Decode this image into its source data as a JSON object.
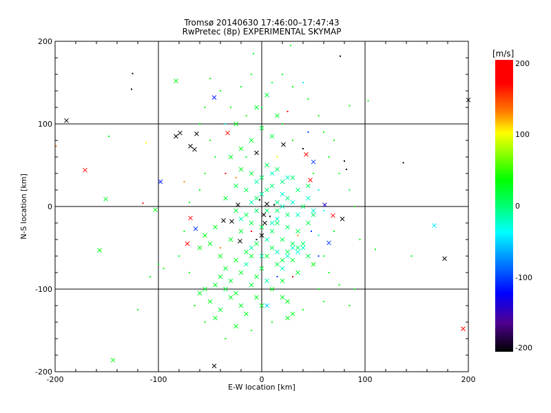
{
  "chart_data": {
    "type": "scatter",
    "title": "Tromsø 20140630 17:46:00–17:47:43",
    "subtitle": "RwPretec (8p) EXPERIMENTAL SKYMAP",
    "xlabel": "E-W location [km]",
    "ylabel": "N-S location [km]",
    "xlim": [
      -200,
      200
    ],
    "ylim": [
      -200,
      200
    ],
    "xticks": [
      "-200",
      "-100",
      "0",
      "100",
      "200"
    ],
    "yticks": [
      "-200",
      "-100",
      "0",
      "100",
      "200"
    ],
    "grid": true,
    "colorbar": {
      "unit": "[m/s]",
      "range": [
        -200,
        200
      ],
      "ticks": [
        "200",
        "100",
        "0",
        "-100",
        "-200"
      ],
      "stops": [
        [
          200,
          "#ff0000"
        ],
        [
          180,
          "#ff0000"
        ],
        [
          150,
          "#ff8000"
        ],
        [
          100,
          "#ffff00"
        ],
        [
          35,
          "#00ff00"
        ],
        [
          0,
          "#00ff70"
        ],
        [
          -35,
          "#00ffff"
        ],
        [
          -70,
          "#0090ff"
        ],
        [
          -120,
          "#0000ff"
        ],
        [
          -160,
          "#500090"
        ],
        [
          -200,
          "#000000"
        ]
      ]
    },
    "points": [
      [
        -189,
        104,
        -200,
        1
      ],
      [
        -199,
        73,
        150,
        0
      ],
      [
        -171,
        44,
        190,
        1
      ],
      [
        -151,
        9,
        25,
        1
      ],
      [
        -157,
        -53,
        30,
        1
      ],
      [
        -144,
        -186,
        30,
        1
      ],
      [
        -98,
        30,
        -110,
        1
      ],
      [
        -103,
        -4,
        30,
        1
      ],
      [
        -112,
        77,
        100,
        0
      ],
      [
        -83,
        85,
        -200,
        1
      ],
      [
        -79,
        89,
        -200,
        1
      ],
      [
        -63,
        88,
        -200,
        1
      ],
      [
        -69,
        73,
        -200,
        1
      ],
      [
        -65,
        69,
        -200,
        1
      ],
      [
        -83,
        152,
        30,
        1
      ],
      [
        -46,
        132,
        -110,
        1
      ],
      [
        -33,
        89,
        190,
        1
      ],
      [
        -5,
        65,
        -200,
        1
      ],
      [
        21,
        75,
        -200,
        1
      ],
      [
        43,
        63,
        190,
        1
      ],
      [
        50,
        54,
        -100,
        1
      ],
      [
        47,
        32,
        190,
        1
      ],
      [
        61,
        2,
        -140,
        1
      ],
      [
        69,
        -11,
        190,
        1
      ],
      [
        78,
        -15,
        -200,
        1
      ],
      [
        65,
        -44,
        -100,
        1
      ],
      [
        -69,
        -14,
        190,
        1
      ],
      [
        -64,
        -27,
        -100,
        1
      ],
      [
        -72,
        -45,
        190,
        1
      ],
      [
        -37,
        -17,
        -200,
        1
      ],
      [
        -29,
        -18,
        -200,
        1
      ],
      [
        -23,
        2,
        -200,
        1
      ],
      [
        -21,
        -42,
        -200,
        1
      ],
      [
        167,
        -23,
        -40,
        1
      ],
      [
        177,
        -63,
        -200,
        1
      ],
      [
        195,
        -148,
        190,
        1
      ],
      [
        -46,
        -193,
        -200,
        1
      ],
      [
        200,
        129,
        -200,
        1
      ],
      [
        2,
        -10,
        -200,
        1
      ],
      [
        5,
        3,
        -200,
        1
      ],
      [
        3,
        -20,
        -200,
        1
      ],
      [
        0,
        -35,
        -200,
        1
      ],
      [
        -40,
        -85,
        25,
        1
      ],
      [
        -45,
        -95,
        25,
        1
      ],
      [
        -35,
        -100,
        20,
        1
      ],
      [
        -30,
        -110,
        25,
        1
      ],
      [
        -25,
        -105,
        20,
        1
      ],
      [
        -20,
        -120,
        25,
        1
      ],
      [
        -15,
        -130,
        25,
        1
      ],
      [
        -30,
        -90,
        20,
        1
      ],
      [
        -20,
        -80,
        25,
        1
      ],
      [
        -10,
        -95,
        20,
        1
      ],
      [
        -5,
        -110,
        25,
        1
      ],
      [
        0,
        -120,
        20,
        1
      ],
      [
        10,
        -100,
        25,
        1
      ],
      [
        20,
        -110,
        20,
        1
      ],
      [
        25,
        -115,
        25,
        1
      ],
      [
        -50,
        -115,
        25,
        1
      ],
      [
        -40,
        -125,
        20,
        1
      ],
      [
        -55,
        -100,
        25,
        1
      ],
      [
        -35,
        -75,
        20,
        1
      ],
      [
        -25,
        -65,
        25,
        1
      ],
      [
        -15,
        -55,
        20,
        1
      ],
      [
        -5,
        -45,
        15,
        1
      ],
      [
        5,
        -60,
        20,
        1
      ],
      [
        15,
        -70,
        15,
        1
      ],
      [
        25,
        -55,
        10,
        1
      ],
      [
        35,
        -50,
        10,
        1
      ],
      [
        40,
        -45,
        5,
        1
      ],
      [
        45,
        -60,
        10,
        1
      ],
      [
        30,
        -65,
        15,
        1
      ],
      [
        20,
        -40,
        10,
        1
      ],
      [
        10,
        -30,
        5,
        1
      ],
      [
        0,
        -25,
        10,
        1
      ],
      [
        -10,
        -20,
        15,
        1
      ],
      [
        -20,
        -30,
        20,
        1
      ],
      [
        -30,
        -40,
        25,
        1
      ],
      [
        -45,
        -25,
        25,
        1
      ],
      [
        -55,
        -35,
        30,
        1
      ],
      [
        -50,
        -45,
        25,
        1
      ],
      [
        15,
        -20,
        5,
        1
      ],
      [
        25,
        -25,
        5,
        1
      ],
      [
        35,
        -30,
        10,
        1
      ],
      [
        45,
        -20,
        10,
        1
      ],
      [
        5,
        -5,
        0,
        1
      ],
      [
        15,
        5,
        -5,
        1
      ],
      [
        25,
        10,
        -5,
        1
      ],
      [
        35,
        20,
        0,
        1
      ],
      [
        45,
        25,
        5,
        1
      ],
      [
        -5,
        10,
        5,
        1
      ],
      [
        -15,
        20,
        10,
        1
      ],
      [
        -25,
        25,
        15,
        1
      ],
      [
        -35,
        10,
        20,
        1
      ],
      [
        0,
        35,
        5,
        1
      ],
      [
        10,
        25,
        0,
        1
      ],
      [
        20,
        30,
        -5,
        1
      ],
      [
        30,
        35,
        0,
        1
      ],
      [
        -20,
        45,
        20,
        1
      ],
      [
        -10,
        40,
        15,
        1
      ],
      [
        5,
        50,
        10,
        1
      ],
      [
        15,
        45,
        5,
        1
      ],
      [
        -30,
        60,
        25,
        1
      ],
      [
        -20,
        70,
        25,
        1
      ],
      [
        -10,
        80,
        20,
        1
      ],
      [
        0,
        95,
        20,
        1
      ],
      [
        10,
        85,
        15,
        1
      ],
      [
        -5,
        120,
        20,
        1
      ],
      [
        5,
        135,
        15,
        1
      ],
      [
        15,
        110,
        20,
        1
      ],
      [
        -25,
        100,
        25,
        1
      ],
      [
        -40,
        -60,
        25,
        1
      ],
      [
        -60,
        -50,
        30,
        1
      ],
      [
        20,
        -90,
        20,
        1
      ],
      [
        35,
        -80,
        20,
        1
      ],
      [
        30,
        -130,
        25,
        1
      ],
      [
        -25,
        -145,
        25,
        1
      ],
      [
        -45,
        -135,
        25,
        1
      ],
      [
        -60,
        -105,
        25,
        1
      ],
      [
        15,
        -5,
        0,
        1
      ],
      [
        -5,
        -5,
        5,
        1
      ],
      [
        5,
        20,
        0,
        1
      ],
      [
        25,
        -10,
        0,
        1
      ],
      [
        40,
        0,
        5,
        1
      ],
      [
        -15,
        -10,
        10,
        1
      ],
      [
        -25,
        -5,
        15,
        1
      ],
      [
        30,
        -45,
        10,
        1
      ],
      [
        50,
        -10,
        5,
        1
      ],
      [
        0,
        -75,
        20,
        1
      ],
      [
        10,
        -50,
        15,
        1
      ],
      [
        -5,
        -85,
        20,
        1
      ],
      [
        -10,
        -60,
        20,
        1
      ],
      [
        20,
        -65,
        15,
        1
      ],
      [
        10,
        -20,
        -20,
        1
      ],
      [
        20,
        0,
        -20,
        1
      ],
      [
        30,
        5,
        -25,
        1
      ],
      [
        0,
        15,
        -15,
        1
      ],
      [
        -10,
        5,
        -15,
        1
      ],
      [
        5,
        -40,
        -15,
        1
      ],
      [
        15,
        -55,
        -20,
        1
      ],
      [
        25,
        -60,
        -20,
        1
      ],
      [
        35,
        -55,
        -25,
        1
      ],
      [
        40,
        -50,
        -20,
        1
      ],
      [
        30,
        -50,
        -20,
        1
      ],
      [
        20,
        15,
        -25,
        1
      ],
      [
        10,
        40,
        -20,
        1
      ],
      [
        -5,
        30,
        -15,
        1
      ],
      [
        25,
        35,
        -20,
        1
      ],
      [
        15,
        -15,
        -25,
        1
      ],
      [
        35,
        -10,
        -20,
        1
      ],
      [
        -20,
        -15,
        -15,
        1
      ],
      [
        5,
        -90,
        -15,
        1
      ],
      [
        0,
        -60,
        -15,
        1
      ],
      [
        -10,
        -50,
        -15,
        1
      ],
      [
        45,
        10,
        -20,
        1
      ],
      [
        50,
        -5,
        -25,
        1
      ],
      [
        20,
        -75,
        -20,
        1
      ],
      [
        -15,
        -70,
        -15,
        1
      ],
      [
        5,
        -120,
        -50,
        1
      ],
      [
        25,
        -135,
        30,
        1
      ],
      [
        50,
        -70,
        30,
        1
      ],
      [
        -125,
        161,
        -200,
        0
      ],
      [
        -126,
        142,
        -200,
        0
      ],
      [
        76,
        182,
        -200,
        0
      ],
      [
        137,
        53,
        -200,
        0
      ],
      [
        103,
        128,
        30,
        0
      ],
      [
        85,
        122,
        30,
        0
      ],
      [
        -148,
        85,
        30,
        0
      ],
      [
        -108,
        -85,
        30,
        0
      ],
      [
        -120,
        -125,
        30,
        0
      ],
      [
        -95,
        -75,
        30,
        0
      ],
      [
        110,
        -52,
        30,
        0
      ],
      [
        145,
        -60,
        30,
        0
      ],
      [
        90,
        -100,
        20,
        0
      ],
      [
        85,
        -120,
        30,
        0
      ],
      [
        75,
        -95,
        30,
        0
      ],
      [
        60,
        -115,
        30,
        0
      ],
      [
        65,
        -80,
        30,
        0
      ],
      [
        70,
        -30,
        30,
        0
      ],
      [
        90,
        0,
        30,
        0
      ],
      [
        85,
        20,
        20,
        0
      ],
      [
        75,
        40,
        30,
        0
      ],
      [
        65,
        60,
        30,
        0
      ],
      [
        80,
        55,
        -200,
        0
      ],
      [
        82,
        45,
        -200,
        0
      ],
      [
        60,
        90,
        30,
        0
      ],
      [
        55,
        110,
        30,
        0
      ],
      [
        45,
        130,
        30,
        0
      ],
      [
        40,
        150,
        -40,
        0
      ],
      [
        30,
        145,
        30,
        0
      ],
      [
        20,
        160,
        30,
        0
      ],
      [
        10,
        150,
        20,
        0
      ],
      [
        -10,
        160,
        30,
        0
      ],
      [
        -20,
        145,
        20,
        0
      ],
      [
        -40,
        140,
        30,
        0
      ],
      [
        -55,
        120,
        30,
        0
      ],
      [
        -60,
        100,
        30,
        0
      ],
      [
        -50,
        80,
        30,
        0
      ],
      [
        -45,
        60,
        20,
        0
      ],
      [
        -55,
        40,
        30,
        0
      ],
      [
        -60,
        20,
        30,
        0
      ],
      [
        -70,
        5,
        30,
        0
      ],
      [
        -75,
        -30,
        30,
        0
      ],
      [
        -80,
        -60,
        20,
        0
      ],
      [
        -70,
        -80,
        30,
        0
      ],
      [
        -65,
        -120,
        30,
        0
      ],
      [
        -55,
        -140,
        30,
        0
      ],
      [
        -35,
        -160,
        30,
        0
      ],
      [
        -10,
        -150,
        30,
        0
      ],
      [
        10,
        -140,
        30,
        0
      ],
      [
        40,
        -125,
        30,
        0
      ],
      [
        55,
        -100,
        30,
        0
      ],
      [
        60,
        -60,
        20,
        0
      ],
      [
        55,
        -35,
        -20,
        0
      ],
      [
        55,
        20,
        -40,
        0
      ],
      [
        50,
        40,
        30,
        0
      ],
      [
        40,
        70,
        -200,
        0
      ],
      [
        30,
        80,
        30,
        0
      ],
      [
        20,
        100,
        30,
        0
      ],
      [
        0,
        120,
        25,
        0
      ],
      [
        -15,
        110,
        30,
        0
      ],
      [
        -30,
        120,
        30,
        0
      ],
      [
        -35,
        40,
        190,
        0
      ],
      [
        -25,
        35,
        150,
        0
      ],
      [
        -15,
        60,
        20,
        0
      ],
      [
        15,
        60,
        100,
        0
      ],
      [
        25,
        115,
        190,
        0
      ],
      [
        45,
        90,
        -100,
        0
      ],
      [
        35,
        -35,
        150,
        0
      ],
      [
        -40,
        -50,
        150,
        0
      ],
      [
        -10,
        -30,
        190,
        0
      ],
      [
        15,
        -85,
        -100,
        0
      ],
      [
        -5,
        -40,
        -200,
        0
      ],
      [
        8,
        -12,
        -200,
        0
      ],
      [
        12,
        2,
        -200,
        0
      ],
      [
        -2,
        8,
        -200,
        0
      ],
      [
        30,
        -85,
        190,
        0
      ],
      [
        55,
        -60,
        -100,
        0
      ],
      [
        -75,
        30,
        150,
        0
      ],
      [
        -115,
        4,
        190,
        0
      ],
      [
        -100,
        -70,
        30,
        0
      ],
      [
        60,
        -5,
        -40,
        0
      ],
      [
        48,
        -30,
        -100,
        0
      ],
      [
        -8,
        185,
        20,
        0
      ],
      [
        28,
        195,
        30,
        0
      ],
      [
        -50,
        155,
        30,
        0
      ],
      [
        -35,
        100,
        -40,
        0
      ],
      [
        70,
        80,
        30,
        0
      ],
      [
        95,
        -40,
        30,
        0
      ]
    ]
  }
}
